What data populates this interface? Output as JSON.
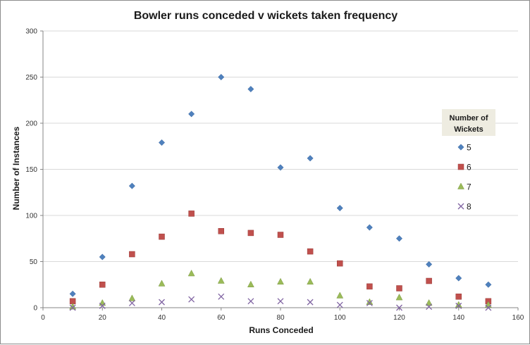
{
  "chart_data": {
    "type": "scatter",
    "title": "Bowler runs conceded v wickets taken frequency",
    "xlabel": "Runs Conceded",
    "ylabel": "Number of Instances",
    "xlim": [
      0,
      160
    ],
    "ylim": [
      0,
      300
    ],
    "xticks": [
      0,
      20,
      40,
      60,
      80,
      100,
      120,
      140,
      160
    ],
    "yticks": [
      0,
      50,
      100,
      150,
      200,
      250,
      300
    ],
    "grid": "horizontal",
    "legend": {
      "title_line1": "Number of",
      "title_line2": "Wickets",
      "placement": "right"
    },
    "x": [
      10,
      20,
      30,
      40,
      50,
      60,
      70,
      80,
      90,
      100,
      110,
      120,
      130,
      140,
      150
    ],
    "series": [
      {
        "name": "5",
        "marker": "diamond",
        "color": "#4f81bd",
        "values": [
          15,
          55,
          132,
          179,
          210,
          250,
          237,
          152,
          162,
          108,
          87,
          75,
          47,
          32,
          25
        ]
      },
      {
        "name": "6",
        "marker": "square",
        "color": "#c0504d",
        "values": [
          7,
          25,
          58,
          77,
          102,
          83,
          81,
          79,
          61,
          48,
          23,
          21,
          29,
          12,
          7
        ]
      },
      {
        "name": "7",
        "marker": "triangle",
        "color": "#9bbb59",
        "values": [
          1,
          5,
          10,
          26,
          37,
          29,
          25,
          28,
          28,
          13,
          6,
          11,
          5,
          3,
          3
        ]
      },
      {
        "name": "8",
        "marker": "x",
        "color": "#8064a2",
        "values": [
          0,
          2,
          5,
          6,
          9,
          12,
          7,
          7,
          6,
          3,
          5,
          0,
          1,
          2,
          0
        ]
      }
    ]
  }
}
